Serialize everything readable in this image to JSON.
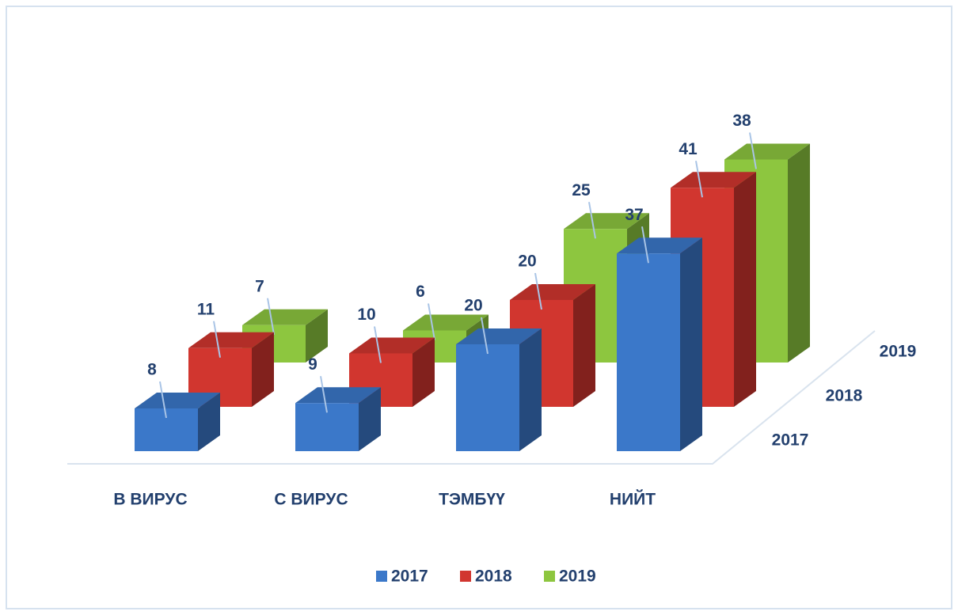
{
  "chart_data": {
    "type": "bar3d",
    "categories": [
      "В ВИРУС",
      "С ВИРУС",
      "ТЭМБҮҮ",
      "НИЙТ"
    ],
    "series": [
      {
        "name": "2017",
        "color": "#3b78c9",
        "values": [
          8,
          9,
          20,
          37
        ]
      },
      {
        "name": "2018",
        "color": "#d1362f",
        "values": [
          11,
          10,
          20,
          41
        ]
      },
      {
        "name": "2019",
        "color": "#8dc63f",
        "values": [
          7,
          6,
          25,
          38
        ]
      }
    ],
    "legend": "bottom"
  }
}
